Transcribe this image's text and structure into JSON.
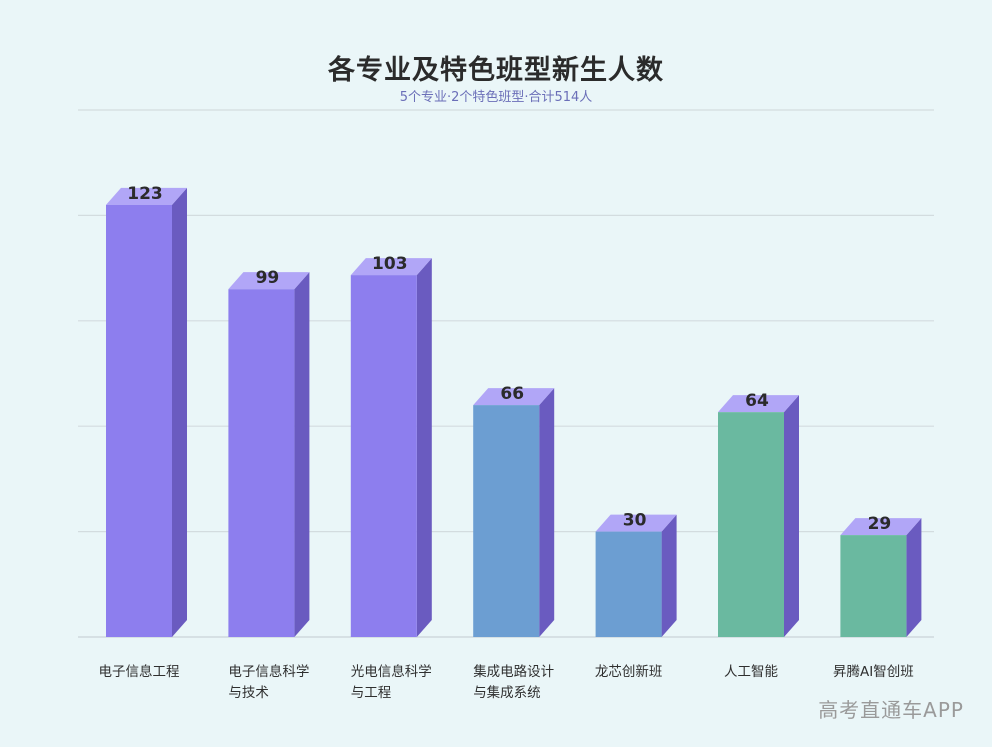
{
  "chart_data": {
    "type": "bar",
    "title": "各专业及特色班型新生人数",
    "subtitle": "5个专业·2个特色班型·合计514人",
    "categories": [
      [
        "电子信息工程"
      ],
      [
        "电子信息科学",
        "与技术"
      ],
      [
        "光电信息科学",
        "与工程"
      ],
      [
        "集成电路设计",
        "与集成系统"
      ],
      [
        "龙芯创新班"
      ],
      [
        "人工智能"
      ],
      [
        "昇腾AI智创班"
      ]
    ],
    "values": [
      123,
      99,
      103,
      66,
      30,
      64,
      29
    ],
    "colors": {
      "purple_front": "#8d7eee",
      "purple_side": "#6a5bc0",
      "purple_top": "#b1a6f7",
      "blue_front": "#6c9ed2",
      "green_front": "#6ab9a0"
    },
    "bar_color_groups": [
      "purple",
      "purple",
      "purple",
      "blue",
      "blue",
      "green",
      "green"
    ],
    "ylim": [
      0,
      150
    ],
    "grid": true,
    "legend": "none"
  },
  "watermark": "高考直通车APP"
}
